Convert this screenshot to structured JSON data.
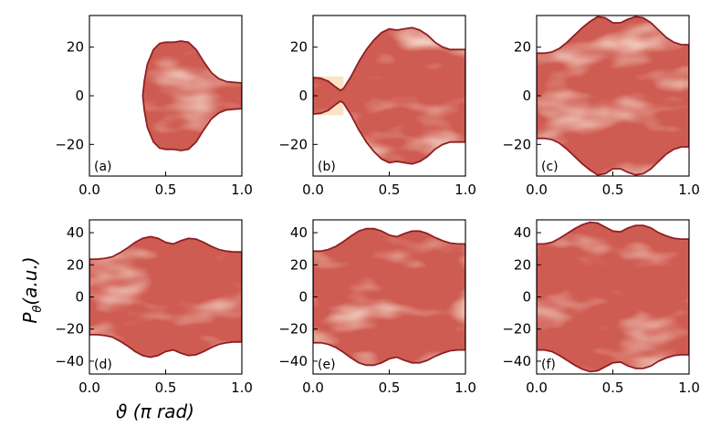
{
  "figure": {
    "ylabel": "P_θ (a.u.)",
    "ylabel_main": "P",
    "ylabel_sub": "θ",
    "ylabel_units": "(a.u.)",
    "xlabel": "ϑ (π rad)",
    "xlabel_symbol": "ϑ",
    "xlabel_units": "(π rad)"
  },
  "colors": {
    "fill": "#cf5c52",
    "fill_dark": "#bd4a44",
    "edge": "#8e1f24",
    "highlight": "#f7d5b4",
    "light_region": "#fbe3c6"
  },
  "chart_data": [
    {
      "type": "area",
      "panel": "(a)",
      "xlim": [
        0.0,
        1.0
      ],
      "ylim": [
        -33,
        33
      ],
      "xticks": [
        0.0,
        0.5,
        1.0
      ],
      "xtick_labels": [
        "0.0",
        "0.5",
        "1.0"
      ],
      "yticks": [
        -20,
        0,
        20
      ],
      "ytick_labels": [
        "−20",
        "0",
        "20"
      ],
      "upper_boundary": {
        "x": [
          0.35,
          0.36,
          0.38,
          0.42,
          0.46,
          0.5,
          0.55,
          0.6,
          0.65,
          0.7,
          0.75,
          0.8,
          0.85,
          0.9,
          0.95,
          1.0
        ],
        "y": [
          0,
          6,
          13,
          19,
          21.5,
          22,
          22,
          22.5,
          22,
          19,
          14,
          9.5,
          7,
          5.8,
          5.5,
          5.3
        ]
      }
    },
    {
      "type": "area",
      "panel": "(b)",
      "xlim": [
        0.0,
        1.0
      ],
      "ylim": [
        -33,
        33
      ],
      "xticks": [
        0.0,
        0.5,
        1.0
      ],
      "xtick_labels": [
        "0.0",
        "0.5",
        "1.0"
      ],
      "yticks": [
        -20,
        0,
        20
      ],
      "ytick_labels": [
        "−20",
        "0",
        "20"
      ],
      "upper_boundary": {
        "x": [
          0.0,
          0.05,
          0.1,
          0.15,
          0.18,
          0.2,
          0.25,
          0.3,
          0.35,
          0.4,
          0.45,
          0.5,
          0.55,
          0.6,
          0.65,
          0.7,
          0.75,
          0.8,
          0.85,
          0.9,
          0.95,
          1.0
        ],
        "y": [
          7.5,
          7.2,
          6,
          3.5,
          2.2,
          3,
          8,
          14,
          19,
          23,
          26,
          27.5,
          27,
          27.5,
          28,
          27,
          25,
          22,
          20,
          19,
          19,
          19
        ]
      }
    },
    {
      "type": "area",
      "panel": "(c)",
      "xlim": [
        0.0,
        1.0
      ],
      "ylim": [
        -33,
        33
      ],
      "xticks": [
        0.0,
        0.5,
        1.0
      ],
      "xtick_labels": [
        "0.0",
        "0.5",
        "1.0"
      ],
      "yticks": [
        -20,
        0,
        20
      ],
      "ytick_labels": [
        "−20",
        "0",
        "20"
      ],
      "upper_boundary": {
        "x": [
          0.0,
          0.05,
          0.1,
          0.15,
          0.2,
          0.25,
          0.3,
          0.35,
          0.4,
          0.45,
          0.5,
          0.55,
          0.6,
          0.65,
          0.7,
          0.75,
          0.8,
          0.85,
          0.9,
          0.95,
          1.0
        ],
        "y": [
          17.5,
          17.5,
          18,
          19.5,
          22,
          25,
          28,
          30.5,
          32.5,
          32,
          30,
          30,
          31.5,
          32.5,
          32,
          30,
          27,
          24,
          22,
          21,
          21
        ]
      }
    },
    {
      "type": "area",
      "panel": "(d)",
      "xlim": [
        0.0,
        1.0
      ],
      "ylim": [
        -48,
        48
      ],
      "xticks": [
        0.0,
        0.5,
        1.0
      ],
      "xtick_labels": [
        "0.0",
        "0.5",
        "1.0"
      ],
      "yticks": [
        -40,
        -20,
        0,
        20,
        40
      ],
      "ytick_labels": [
        "−40",
        "−20",
        "0",
        "20",
        "40"
      ],
      "upper_boundary": {
        "x": [
          0.0,
          0.05,
          0.1,
          0.15,
          0.2,
          0.25,
          0.3,
          0.35,
          0.4,
          0.45,
          0.5,
          0.55,
          0.6,
          0.65,
          0.7,
          0.75,
          0.8,
          0.85,
          0.9,
          0.95,
          1.0
        ],
        "y": [
          23.5,
          23.5,
          24,
          25,
          27.5,
          30.5,
          34,
          36.5,
          37.5,
          36.5,
          34,
          33,
          35,
          36.5,
          36,
          34,
          31.5,
          29.5,
          28.5,
          28,
          28
        ]
      }
    },
    {
      "type": "area",
      "panel": "(e)",
      "xlim": [
        0.0,
        1.0
      ],
      "ylim": [
        -48,
        48
      ],
      "xticks": [
        0.0,
        0.5,
        1.0
      ],
      "xtick_labels": [
        "0.0",
        "0.5",
        "1.0"
      ],
      "yticks": [
        -40,
        -20,
        0,
        20,
        40
      ],
      "ytick_labels": [
        "−40",
        "−20",
        "0",
        "20",
        "40"
      ],
      "upper_boundary": {
        "x": [
          0.0,
          0.05,
          0.1,
          0.15,
          0.2,
          0.25,
          0.3,
          0.35,
          0.4,
          0.45,
          0.5,
          0.55,
          0.6,
          0.65,
          0.7,
          0.75,
          0.8,
          0.85,
          0.9,
          0.95,
          1.0
        ],
        "y": [
          28.5,
          28.5,
          29.5,
          31.5,
          34.5,
          38,
          41,
          42.5,
          42.5,
          41,
          38.5,
          37.5,
          39.5,
          41,
          41,
          39.5,
          37,
          35,
          33.5,
          33,
          33
        ]
      }
    },
    {
      "type": "area",
      "panel": "(f)",
      "xlim": [
        0.0,
        1.0
      ],
      "ylim": [
        -48,
        48
      ],
      "xticks": [
        0.0,
        0.5,
        1.0
      ],
      "xtick_labels": [
        "0.0",
        "0.5",
        "1.0"
      ],
      "yticks": [
        -40,
        -20,
        0,
        20,
        40
      ],
      "ytick_labels": [
        "−40",
        "−20",
        "0",
        "20",
        "40"
      ],
      "upper_boundary": {
        "x": [
          0.0,
          0.05,
          0.1,
          0.15,
          0.2,
          0.25,
          0.3,
          0.35,
          0.4,
          0.45,
          0.5,
          0.55,
          0.6,
          0.65,
          0.7,
          0.75,
          0.8,
          0.85,
          0.9,
          0.95,
          1.0
        ],
        "y": [
          33,
          33,
          34,
          36.5,
          39.5,
          42.5,
          45,
          46.5,
          46,
          43.5,
          41,
          40.5,
          43,
          44.5,
          44.5,
          43,
          40,
          38,
          36.5,
          36,
          36
        ]
      }
    }
  ]
}
